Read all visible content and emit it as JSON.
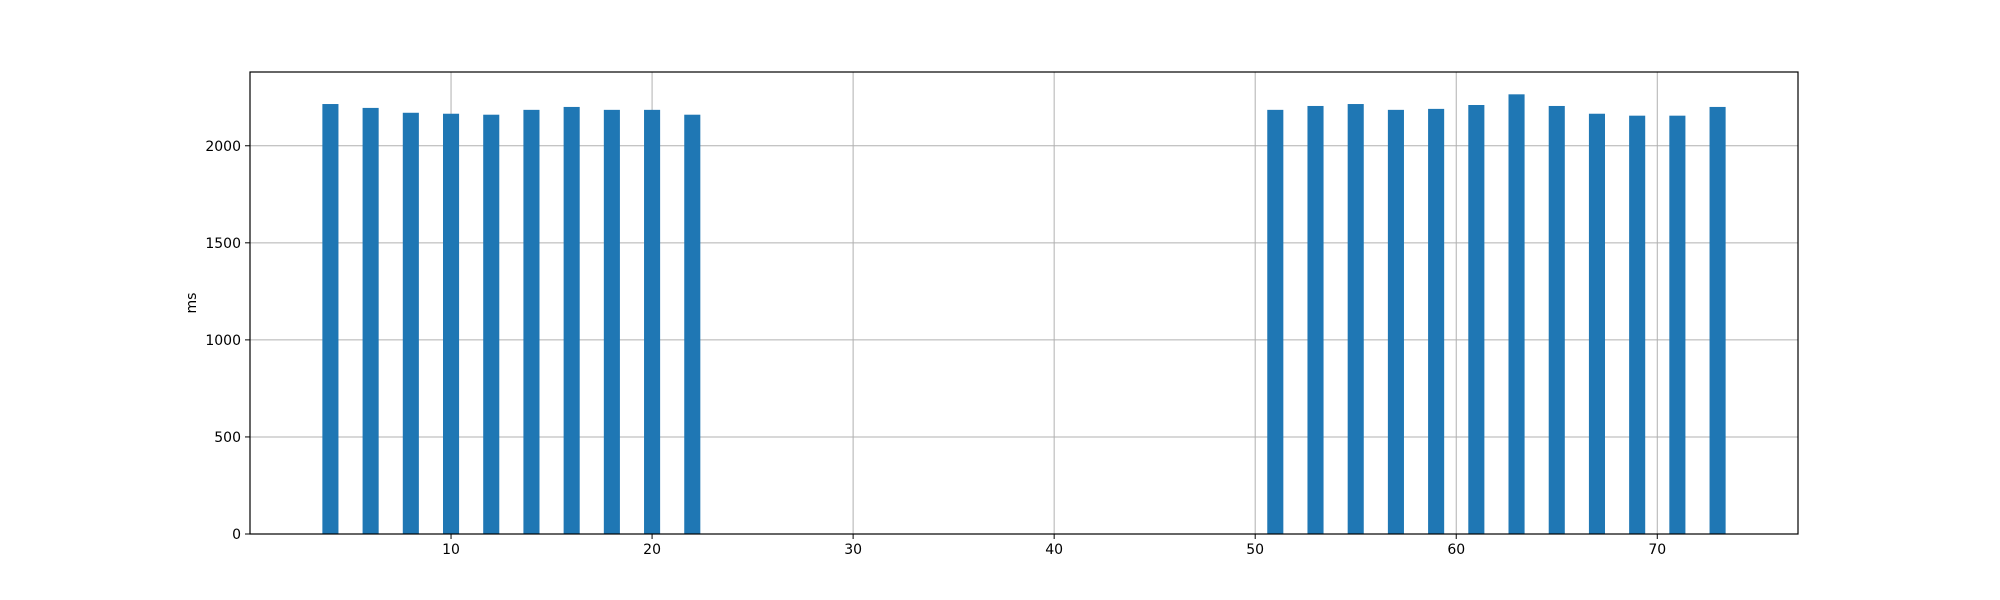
{
  "chart_data": {
    "type": "bar",
    "title": "",
    "xlabel": "",
    "ylabel": "ms",
    "xlim": [
      0,
      77
    ],
    "ylim": [
      0,
      2380
    ],
    "xticks": [
      10,
      20,
      30,
      40,
      50,
      60,
      70
    ],
    "yticks": [
      0,
      500,
      1000,
      1500,
      2000
    ],
    "grid": true,
    "bar_width": 0.8,
    "bar_color": "#1f77b4",
    "x": [
      4,
      6,
      8,
      10,
      12,
      14,
      16,
      18,
      20,
      22,
      51,
      53,
      55,
      57,
      59,
      61,
      63,
      65,
      67,
      69,
      71,
      73
    ],
    "values": [
      2215,
      2195,
      2170,
      2165,
      2160,
      2185,
      2200,
      2185,
      2185,
      2160,
      2185,
      2205,
      2215,
      2185,
      2190,
      2210,
      2265,
      2205,
      2165,
      2155,
      2155,
      2200
    ]
  }
}
